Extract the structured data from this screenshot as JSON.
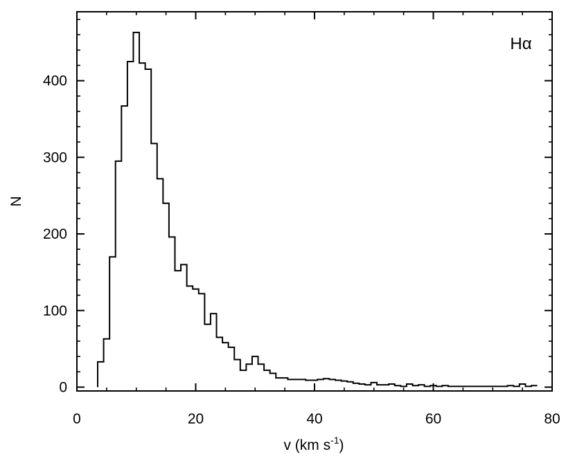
{
  "chart_data": {
    "type": "histogram",
    "title": "",
    "annotation": "Hα",
    "xlabel": {
      "base": "v (km s",
      "superscript": "-1",
      "suffix": ")"
    },
    "ylabel": "N",
    "xlim": [
      0,
      80
    ],
    "ylim": [
      -5,
      490
    ],
    "x_ticks": [
      0,
      20,
      40,
      60,
      80
    ],
    "y_ticks": [
      0,
      100,
      200,
      300,
      400
    ],
    "x_minor_step": 5,
    "y_minor_step": 20,
    "grid": false,
    "bin_width": 1,
    "bin_start": 3.5,
    "series": [
      {
        "values": [
          33,
          63,
          170,
          295,
          367,
          425,
          463,
          423,
          415,
          318,
          272,
          240,
          196,
          152,
          160,
          132,
          128,
          122,
          82,
          96,
          65,
          58,
          52,
          36,
          22,
          30,
          40,
          30,
          22,
          18,
          12,
          12,
          10,
          10,
          10,
          9,
          9,
          10,
          11,
          10,
          9,
          8,
          7,
          5,
          4,
          3,
          6,
          3,
          3,
          4,
          2,
          1,
          4,
          2,
          3,
          1,
          2,
          1,
          2,
          1,
          1,
          1,
          1,
          1,
          1,
          1,
          1,
          1,
          1,
          2,
          1,
          4,
          1,
          2
        ]
      }
    ]
  }
}
